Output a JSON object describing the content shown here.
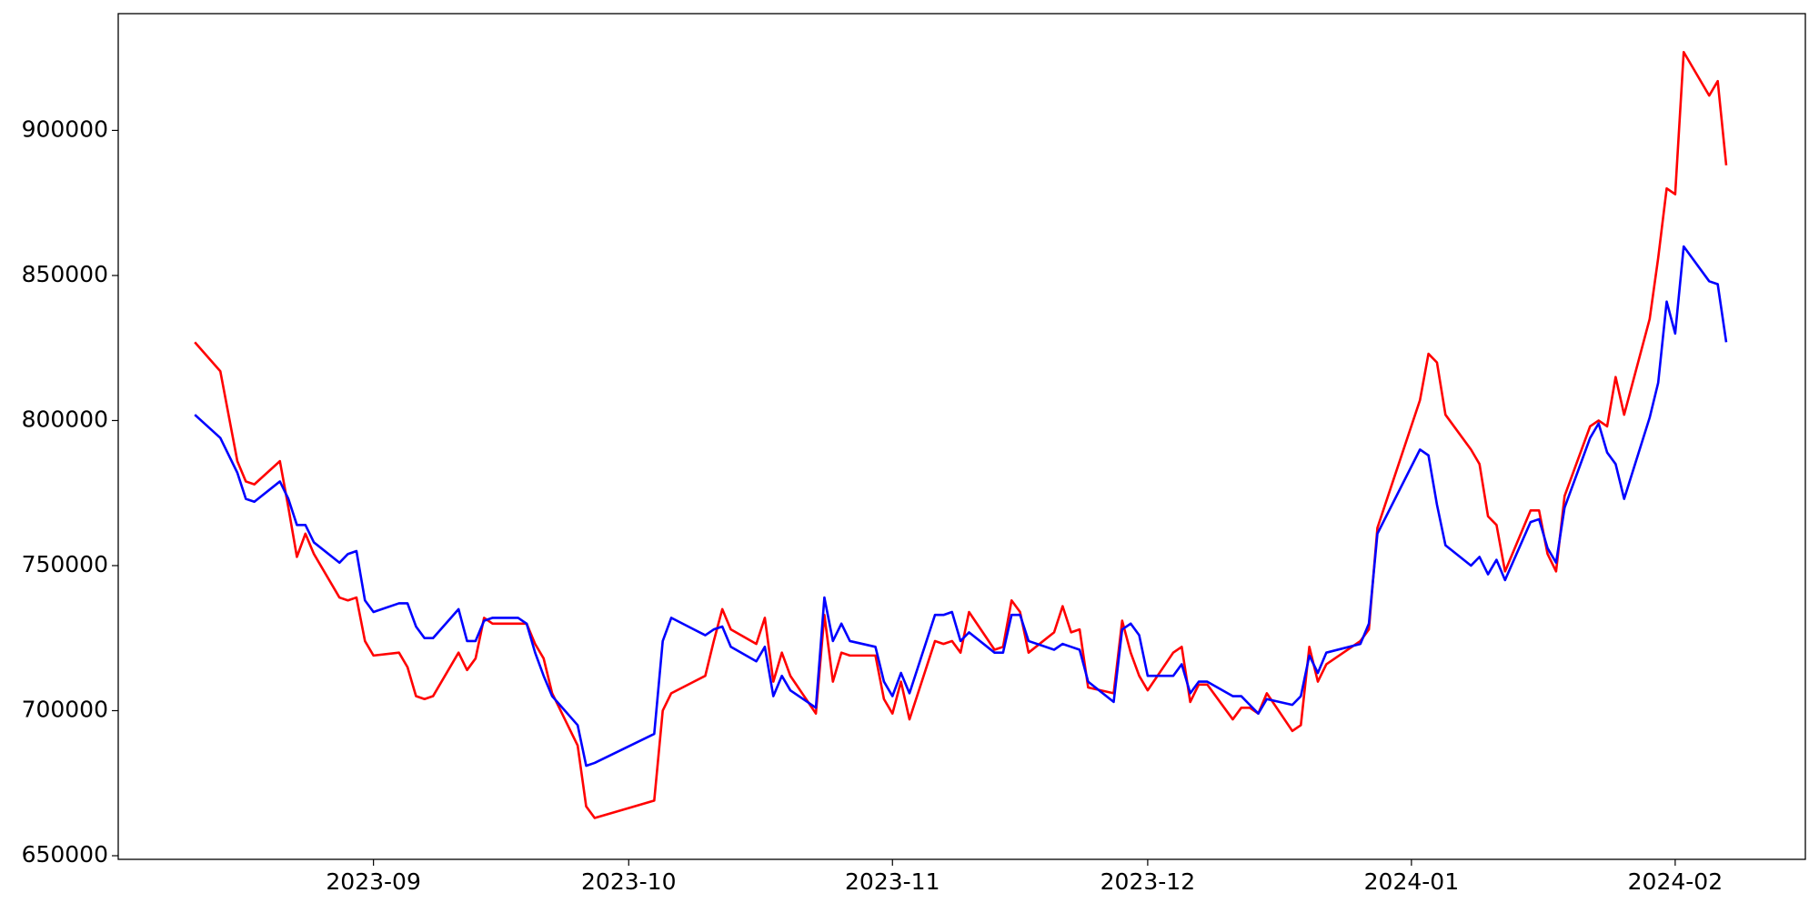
{
  "chart_data": {
    "type": "line",
    "x": [
      19580,
      19583,
      19585,
      19586,
      19587,
      19590,
      19591,
      19592,
      19593,
      19594,
      19597,
      19598,
      19599,
      19600,
      19601,
      19604,
      19605,
      19606,
      19607,
      19608,
      19611,
      19612,
      19613,
      19614,
      19615,
      19618,
      19619,
      19620,
      19621,
      19622,
      19625,
      19626,
      19627,
      19634,
      19635,
      19636,
      19640,
      19641,
      19642,
      19643,
      19646,
      19647,
      19648,
      19649,
      19650,
      19653,
      19654,
      19655,
      19656,
      19657,
      19660,
      19661,
      19662,
      19663,
      19664,
      19667,
      19668,
      19669,
      19670,
      19671,
      19674,
      19675,
      19676,
      19677,
      19678,
      19681,
      19682,
      19683,
      19684,
      19685,
      19688,
      19689,
      19690,
      19691,
      19692,
      19695,
      19696,
      19697,
      19698,
      19699,
      19702,
      19703,
      19704,
      19705,
      19706,
      19709,
      19710,
      19711,
      19712,
      19713,
      19717,
      19718,
      19719,
      19724,
      19725,
      19726,
      19727,
      19730,
      19731,
      19732,
      19733,
      19734,
      19737,
      19738,
      19739,
      19740,
      19741,
      19744,
      19745,
      19746,
      19747,
      19748,
      19751,
      19752,
      19753,
      19754,
      19755,
      19758,
      19759,
      19760
    ],
    "series": [
      {
        "color": "#ff0000",
        "values": [
          827000,
          817000,
          786000,
          779000,
          778000,
          786000,
          770000,
          753000,
          761000,
          754000,
          739000,
          738000,
          739000,
          724000,
          719000,
          720000,
          715000,
          705000,
          704000,
          705000,
          720000,
          714000,
          718000,
          732000,
          730000,
          730000,
          730000,
          723000,
          718000,
          706000,
          688000,
          667000,
          663000,
          669000,
          700000,
          706000,
          712000,
          724000,
          735000,
          728000,
          723000,
          732000,
          710000,
          720000,
          712000,
          699000,
          733000,
          710000,
          720000,
          719000,
          719000,
          704000,
          699000,
          710000,
          697000,
          724000,
          723000,
          724000,
          720000,
          734000,
          721000,
          722000,
          738000,
          734000,
          720000,
          727000,
          736000,
          727000,
          728000,
          708000,
          706000,
          731000,
          720000,
          712000,
          707000,
          720000,
          722000,
          703000,
          709000,
          709000,
          697000,
          701000,
          701000,
          699000,
          706000,
          693000,
          695000,
          722000,
          710000,
          716000,
          724000,
          728000,
          763000,
          807000,
          823000,
          820000,
          802000,
          790000,
          785000,
          767000,
          764000,
          748000,
          769000,
          769000,
          754000,
          748000,
          774000,
          798000,
          800000,
          798000,
          815000,
          802000,
          835000,
          856000,
          880000,
          878000,
          927000,
          912000,
          917000,
          888000
        ]
      },
      {
        "color": "#0000ff",
        "values": [
          802000,
          794000,
          782000,
          773000,
          772000,
          779000,
          773000,
          764000,
          764000,
          758000,
          751000,
          754000,
          755000,
          738000,
          734000,
          737000,
          737000,
          729000,
          725000,
          725000,
          735000,
          724000,
          724000,
          731000,
          732000,
          732000,
          730000,
          720000,
          712000,
          705000,
          695000,
          681000,
          682000,
          692000,
          724000,
          732000,
          726000,
          728000,
          729000,
          722000,
          717000,
          722000,
          705000,
          712000,
          707000,
          701000,
          739000,
          724000,
          730000,
          724000,
          722000,
          710000,
          705000,
          713000,
          706000,
          733000,
          733000,
          734000,
          724000,
          727000,
          720000,
          720000,
          733000,
          733000,
          724000,
          721000,
          723000,
          722000,
          721000,
          710000,
          703000,
          728000,
          730000,
          726000,
          712000,
          712000,
          716000,
          706000,
          710000,
          710000,
          705000,
          705000,
          702000,
          699000,
          704000,
          702000,
          705000,
          719000,
          713000,
          720000,
          723000,
          730000,
          761000,
          790000,
          788000,
          771000,
          757000,
          750000,
          753000,
          747000,
          752000,
          745000,
          765000,
          766000,
          756000,
          751000,
          770000,
          794000,
          799000,
          789000,
          785000,
          773000,
          801000,
          813000,
          841000,
          830000,
          860000,
          848000,
          847000,
          827000
        ]
      }
    ],
    "xlim": [
      19571,
      19769.3
    ],
    "xticks": [
      {
        "value": 19601,
        "label": "2023-09"
      },
      {
        "value": 19631,
        "label": "2023-10"
      },
      {
        "value": 19662,
        "label": "2023-11"
      },
      {
        "value": 19692,
        "label": "2023-12"
      },
      {
        "value": 19723,
        "label": "2024-01"
      },
      {
        "value": 19754,
        "label": "2024-02"
      }
    ],
    "ylim": [
      648750,
      940250
    ],
    "yticks": [
      650000,
      700000,
      750000,
      800000,
      850000,
      900000
    ],
    "grid": false
  }
}
